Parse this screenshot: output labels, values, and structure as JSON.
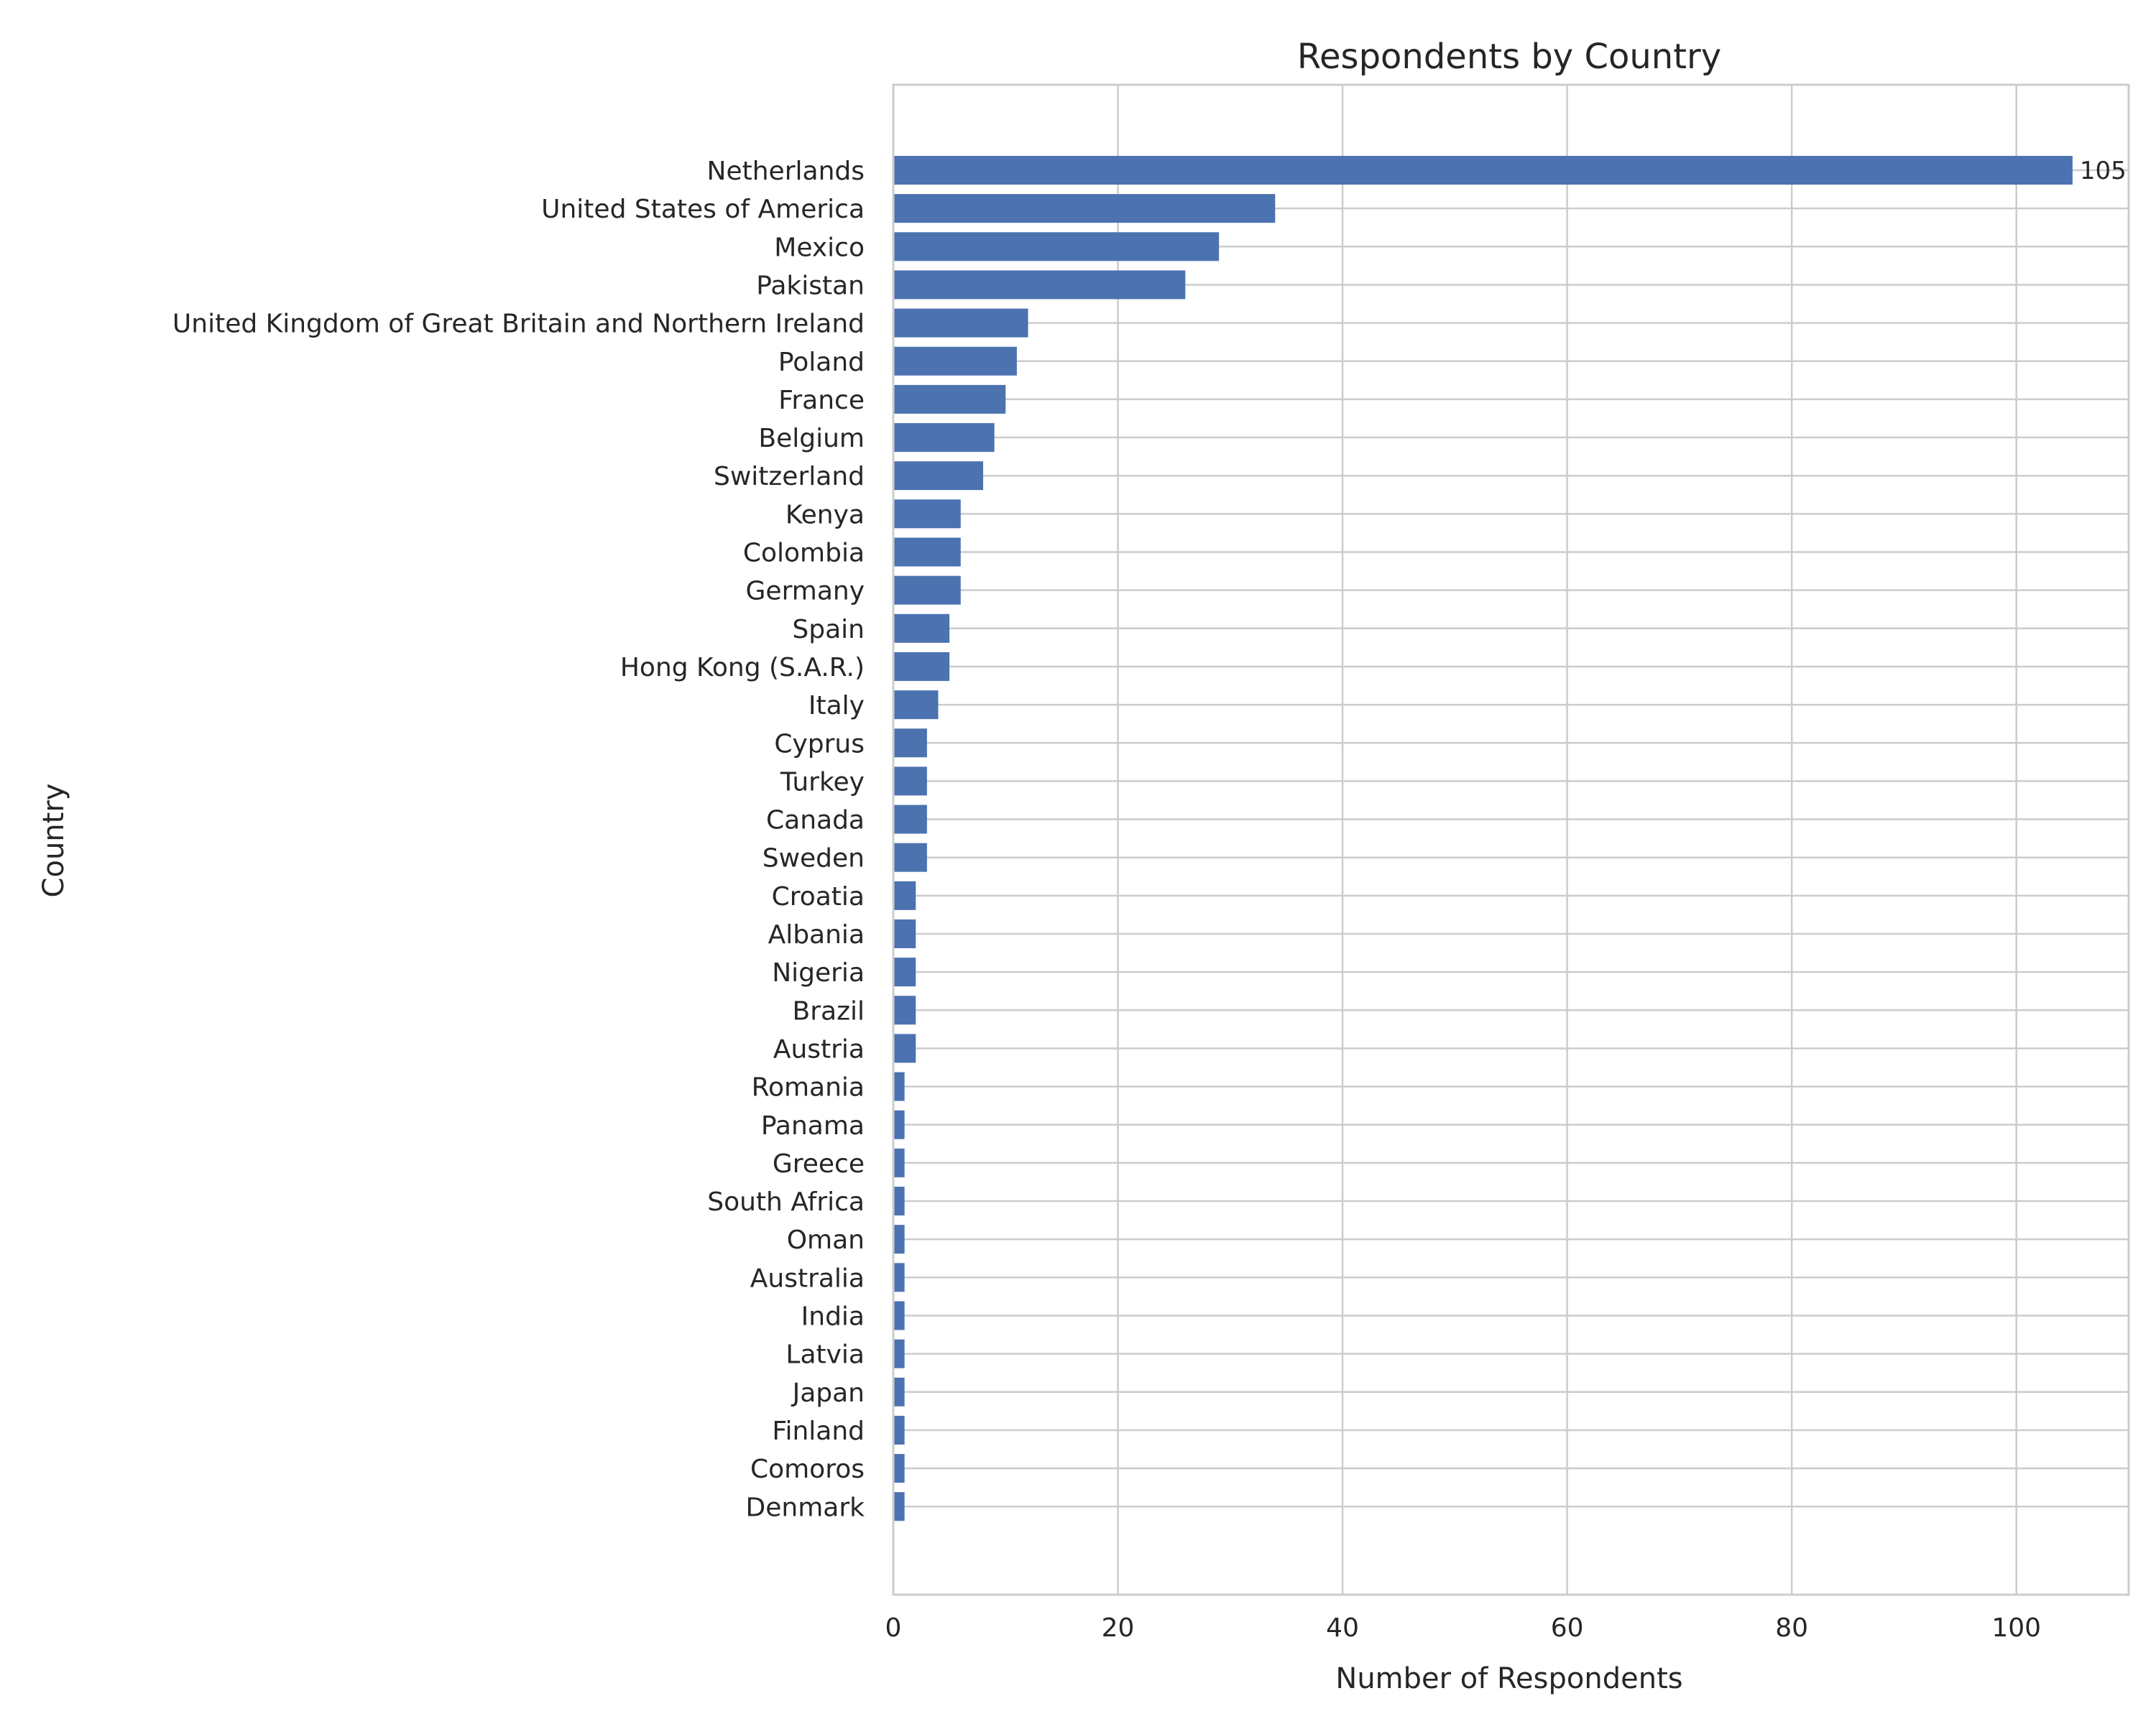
{
  "chart_data": {
    "type": "bar",
    "orientation": "horizontal",
    "title": "Respondents by Country",
    "xlabel": "Number of Respondents",
    "ylabel": "Country",
    "xlim": [
      0,
      110
    ],
    "xticks": [
      0,
      20,
      40,
      60,
      80,
      100
    ],
    "grid": true,
    "bar_color": "#4c72b0",
    "categories": [
      "Netherlands",
      "United States of America",
      "Mexico",
      "Pakistan",
      "United Kingdom of Great Britain and Northern Ireland",
      "Poland",
      "France",
      "Belgium",
      "Switzerland",
      "Kenya",
      "Colombia",
      "Germany",
      "Spain",
      "Hong Kong (S.A.R.)",
      "Italy",
      "Cyprus",
      "Turkey",
      "Canada",
      "Sweden",
      "Croatia",
      "Albania",
      "Nigeria",
      "Brazil",
      "Austria",
      "Romania",
      "Panama",
      "Greece",
      "South Africa",
      "Oman",
      "Australia",
      "India",
      "Latvia",
      "Japan",
      "Finland",
      "Comoros",
      "Denmark"
    ],
    "values": [
      105,
      34,
      29,
      26,
      12,
      11,
      10,
      9,
      8,
      6,
      6,
      6,
      5,
      5,
      4,
      3,
      3,
      3,
      3,
      2,
      2,
      2,
      2,
      2,
      1,
      1,
      1,
      1,
      1,
      1,
      1,
      1,
      1,
      1,
      1,
      1
    ],
    "data_labels": [
      {
        "index": 0,
        "text": "105"
      }
    ]
  }
}
